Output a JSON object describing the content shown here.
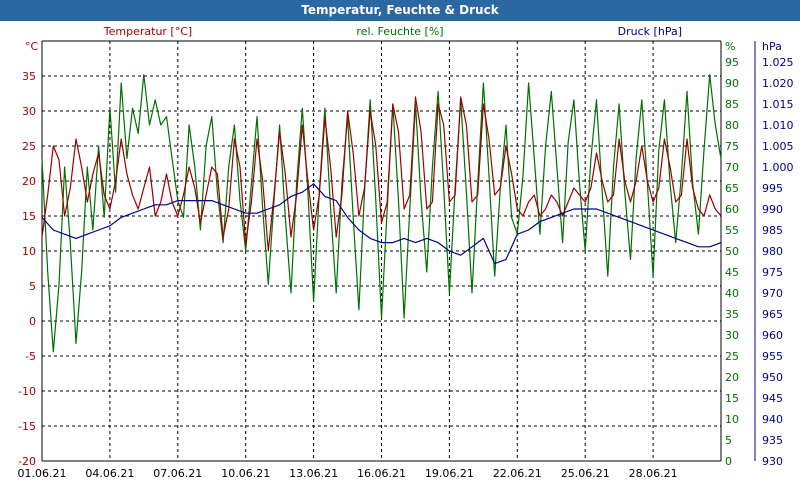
{
  "window": {
    "title": "Temperatur, Feuchte & Druck"
  },
  "chart_data": {
    "type": "line",
    "title": "Temperatur, Feuchte & Druck",
    "grid": true,
    "x_ticks": [
      "01.06.21",
      "04.06.21",
      "07.06.21",
      "10.06.21",
      "13.06.21",
      "16.06.21",
      "19.06.21",
      "22.06.21",
      "25.06.21",
      "28.06.21"
    ],
    "xlim": [
      0,
      30
    ],
    "axes": {
      "temperature": {
        "label": "Temperatur [°C]",
        "unit": "°C",
        "ylim": [
          -20,
          40
        ],
        "ticks": [
          -20,
          -15,
          -10,
          -5,
          0,
          5,
          10,
          15,
          20,
          25,
          30,
          35
        ],
        "color": "#9c0000"
      },
      "humidity": {
        "label": "rel. Feuchte [%]",
        "unit": "%",
        "ylim": [
          0,
          100
        ],
        "ticks": [
          0,
          5,
          10,
          15,
          20,
          25,
          30,
          35,
          40,
          45,
          50,
          55,
          60,
          65,
          70,
          75,
          80,
          85,
          90,
          95
        ],
        "color": "#007000"
      },
      "pressure": {
        "label": "Druck [hPa]",
        "unit": "hPa",
        "ylim": [
          930,
          1030
        ],
        "ticks": [
          "930",
          "935",
          "940",
          "945",
          "950",
          "955",
          "960",
          "965",
          "970",
          "975",
          "980",
          "985",
          "990",
          "995",
          "1.000",
          "1.005",
          "1.010",
          "1.015",
          "1.020",
          "1.025"
        ],
        "color": "#00008b"
      }
    },
    "series": [
      {
        "name": "Temperatur [°C]",
        "axis": "temperature",
        "color": "#9c0000",
        "x": [
          0,
          0.25,
          0.5,
          0.75,
          1,
          1.25,
          1.5,
          1.75,
          2,
          2.25,
          2.5,
          2.75,
          3,
          3.25,
          3.5,
          3.75,
          4,
          4.25,
          4.5,
          4.75,
          5,
          5.25,
          5.5,
          5.75,
          6,
          6.25,
          6.5,
          6.75,
          7,
          7.25,
          7.5,
          7.75,
          8,
          8.25,
          8.5,
          8.75,
          9,
          9.25,
          9.5,
          9.75,
          10,
          10.25,
          10.5,
          10.75,
          11,
          11.25,
          11.5,
          11.75,
          12,
          12.25,
          12.5,
          12.75,
          13,
          13.25,
          13.5,
          13.75,
          14,
          14.25,
          14.5,
          14.75,
          15,
          15.25,
          15.5,
          15.75,
          16,
          16.25,
          16.5,
          16.75,
          17,
          17.25,
          17.5,
          17.75,
          18,
          18.25,
          18.5,
          18.75,
          19,
          19.25,
          19.5,
          19.75,
          20,
          20.25,
          20.5,
          20.75,
          21,
          21.25,
          21.5,
          21.75,
          22,
          22.25,
          22.5,
          22.75,
          23,
          23.25,
          23.5,
          23.75,
          24,
          24.25,
          24.5,
          24.75,
          25,
          25.25,
          25.5,
          25.75,
          26,
          26.25,
          26.5,
          26.75,
          27,
          27.25,
          27.5,
          27.75,
          28,
          28.25,
          28.5,
          28.75,
          29,
          29.25,
          29.5,
          29.75,
          30
        ],
        "values": [
          12,
          18,
          25,
          23,
          15,
          19,
          26,
          22,
          17,
          21,
          24,
          18,
          16,
          20,
          26,
          21,
          18,
          16,
          19,
          22,
          15,
          17,
          21,
          17,
          15,
          18,
          22,
          19,
          14,
          18,
          22,
          21,
          12,
          16,
          26,
          22,
          11,
          17,
          26,
          20,
          10,
          18,
          27,
          21,
          12,
          18,
          28,
          20,
          13,
          18,
          29,
          22,
          12,
          18,
          30,
          24,
          15,
          19,
          30,
          25,
          14,
          17,
          31,
          27,
          16,
          18,
          32,
          27,
          16,
          17,
          31,
          28,
          17,
          18,
          32,
          28,
          17,
          18,
          31,
          26,
          18,
          19,
          25,
          21,
          16,
          15,
          17,
          18,
          15,
          16,
          18,
          17,
          15,
          17,
          19,
          18,
          17,
          19,
          24,
          20,
          17,
          18,
          26,
          20,
          17,
          20,
          25,
          20,
          17,
          19,
          26,
          22,
          17,
          18,
          26,
          19,
          16,
          15,
          18,
          16,
          15
        ]
      },
      {
        "name": "rel. Feuchte [%]",
        "axis": "humidity",
        "color": "#007000",
        "x": [
          0,
          0.25,
          0.5,
          0.75,
          1,
          1.25,
          1.5,
          1.75,
          2,
          2.25,
          2.5,
          2.75,
          3,
          3.25,
          3.5,
          3.75,
          4,
          4.25,
          4.5,
          4.75,
          5,
          5.25,
          5.5,
          5.75,
          6,
          6.25,
          6.5,
          6.75,
          7,
          7.25,
          7.5,
          7.75,
          8,
          8.25,
          8.5,
          8.75,
          9,
          9.25,
          9.5,
          9.75,
          10,
          10.25,
          10.5,
          10.75,
          11,
          11.25,
          11.5,
          11.75,
          12,
          12.25,
          12.5,
          12.75,
          13,
          13.25,
          13.5,
          13.75,
          14,
          14.25,
          14.5,
          14.75,
          15,
          15.25,
          15.5,
          15.75,
          16,
          16.25,
          16.5,
          16.75,
          17,
          17.25,
          17.5,
          17.75,
          18,
          18.25,
          18.5,
          18.75,
          19,
          19.25,
          19.5,
          19.75,
          20,
          20.25,
          20.5,
          20.75,
          21,
          21.25,
          21.5,
          21.75,
          22,
          22.25,
          22.5,
          22.75,
          23,
          23.25,
          23.5,
          23.75,
          24,
          24.25,
          24.5,
          24.75,
          25,
          25.25,
          25.5,
          25.75,
          26,
          26.25,
          26.5,
          26.75,
          27,
          27.25,
          27.5,
          27.75,
          28,
          28.25,
          28.5,
          28.75,
          29,
          29.25,
          29.5,
          29.75,
          30
        ],
        "values": [
          72,
          45,
          26,
          42,
          70,
          52,
          28,
          45,
          70,
          55,
          75,
          58,
          84,
          64,
          90,
          72,
          84,
          78,
          92,
          80,
          86,
          80,
          82,
          72,
          62,
          58,
          80,
          70,
          55,
          75,
          82,
          64,
          52,
          70,
          80,
          62,
          50,
          66,
          82,
          60,
          42,
          62,
          80,
          58,
          40,
          66,
          84,
          64,
          38,
          64,
          84,
          60,
          40,
          66,
          82,
          58,
          36,
          64,
          86,
          62,
          34,
          60,
          85,
          62,
          34,
          60,
          85,
          62,
          45,
          70,
          88,
          65,
          40,
          65,
          86,
          64,
          40,
          66,
          90,
          68,
          44,
          65,
          80,
          58,
          54,
          68,
          90,
          72,
          54,
          75,
          88,
          70,
          52,
          76,
          86,
          66,
          50,
          72,
          86,
          64,
          44,
          70,
          85,
          64,
          48,
          72,
          86,
          66,
          44,
          74,
          86,
          66,
          52,
          68,
          88,
          66,
          54,
          74,
          92,
          80,
          72
        ]
      },
      {
        "name": "Druck [hPa]",
        "axis": "pressure",
        "color": "#00008b",
        "x": [
          0,
          0.5,
          1,
          1.5,
          2,
          2.5,
          3,
          3.5,
          4,
          4.5,
          5,
          5.5,
          6,
          6.5,
          7,
          7.5,
          8,
          8.5,
          9,
          9.5,
          10,
          10.5,
          11,
          11.5,
          12,
          12.5,
          13,
          13.5,
          14,
          14.5,
          15,
          15.5,
          16,
          16.5,
          17,
          17.5,
          18,
          18.5,
          19,
          19.5,
          20,
          20.5,
          21,
          21.5,
          22,
          22.5,
          23,
          23.5,
          24,
          24.5,
          25,
          25.5,
          26,
          26.5,
          27,
          27.5,
          28,
          28.5,
          29,
          29.5,
          30
        ],
        "values": [
          988,
          985,
          984,
          983,
          984,
          985,
          986,
          988,
          989,
          990,
          991,
          991,
          992,
          992,
          992,
          992,
          991,
          990,
          989,
          989,
          990,
          991,
          993,
          994,
          996,
          993,
          992,
          988,
          985,
          983,
          982,
          982,
          983,
          982,
          983,
          982,
          980,
          979,
          981,
          983,
          977,
          978,
          984,
          985,
          987,
          988,
          989,
          990,
          990,
          990,
          989,
          988,
          987,
          986,
          985,
          984,
          983,
          982,
          981,
          981,
          982
        ]
      }
    ]
  }
}
